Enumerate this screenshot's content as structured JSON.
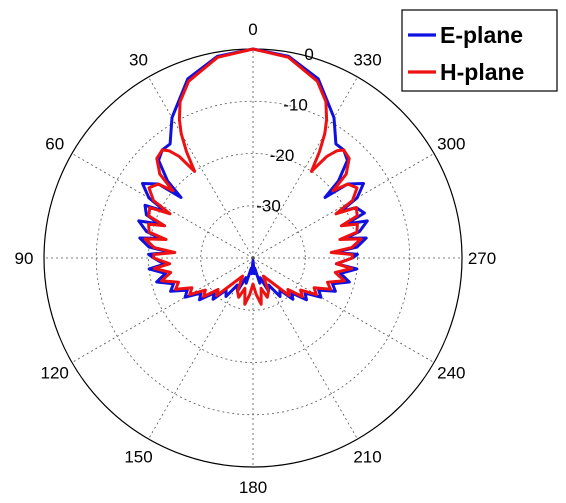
{
  "chart_data": {
    "type": "line",
    "subtype": "polar",
    "theta_direction": "counterclockwise",
    "theta_zero": "top",
    "angle_ticks": [
      "0",
      "30",
      "60",
      "90",
      "120",
      "150",
      "180",
      "210",
      "240",
      "270",
      "300",
      "330"
    ],
    "radial_ticks": [
      "0",
      "-10",
      "-20",
      "-30"
    ],
    "rlim": [
      -40,
      0
    ],
    "grid": true,
    "legend": "top-right",
    "series": [
      {
        "name": "E-plane",
        "color": "#1010e0",
        "theta": [
          0,
          10,
          20,
          30,
          32,
          36,
          40,
          44,
          48,
          50,
          52,
          56,
          60,
          62,
          64,
          68,
          70,
          72,
          76,
          78,
          80,
          84,
          86,
          88,
          90,
          94,
          96,
          100,
          104,
          108,
          112,
          116,
          120,
          124,
          128,
          132,
          136,
          140,
          145,
          150,
          155,
          160,
          165,
          170,
          175,
          180,
          185,
          190,
          195,
          200,
          205,
          210,
          215,
          220,
          224,
          228,
          232,
          236,
          240,
          244,
          248,
          252,
          256,
          260,
          264,
          266,
          270,
          272,
          274,
          276,
          280,
          282,
          284,
          288,
          290,
          292,
          296,
          298,
          300,
          304,
          308,
          310,
          312,
          316,
          320,
          324,
          328,
          330,
          340,
          350,
          360
        ],
        "r": [
          0,
          -0.8,
          -3.5,
          -9,
          -10.5,
          -13,
          -13,
          -14,
          -18,
          -22,
          -17,
          -14.5,
          -17,
          -21,
          -17,
          -18,
          -21,
          -17,
          -19,
          -22,
          -18,
          -20,
          -24,
          -20,
          -21,
          -23,
          -20,
          -23,
          -21,
          -24,
          -23,
          -26,
          -25,
          -28,
          -27,
          -30,
          -29,
          -32,
          -31,
          -34,
          -33,
          -36,
          -35,
          -38,
          -37,
          -39.5,
          -37,
          -38,
          -35,
          -36,
          -33,
          -34,
          -31,
          -32,
          -29,
          -30,
          -27,
          -28,
          -25,
          -26,
          -23,
          -24,
          -21,
          -23,
          -20,
          -24,
          -21,
          -20,
          -24,
          -20,
          -18,
          -22,
          -19,
          -17,
          -21,
          -17,
          -18,
          -21,
          -17,
          -14.5,
          -17,
          -22,
          -18,
          -14,
          -13,
          -13,
          -10.5,
          -9,
          -3.5,
          -0.8,
          0
        ]
      },
      {
        "name": "H-plane",
        "color": "#ee1111",
        "theta": [
          0,
          10,
          20,
          25,
          28,
          30,
          32,
          34,
          36,
          38,
          40,
          44,
          48,
          50,
          52,
          56,
          60,
          62,
          64,
          68,
          70,
          72,
          76,
          78,
          80,
          84,
          86,
          88,
          90,
          94,
          96,
          100,
          104,
          108,
          112,
          116,
          120,
          124,
          128,
          132,
          136,
          140,
          150,
          155,
          160,
          165,
          170,
          175,
          180,
          185,
          190,
          195,
          200,
          205,
          210,
          220,
          224,
          228,
          232,
          236,
          240,
          244,
          248,
          252,
          256,
          260,
          264,
          266,
          270,
          272,
          274,
          276,
          280,
          282,
          284,
          288,
          290,
          292,
          296,
          298,
          300,
          304,
          308,
          310,
          312,
          316,
          320,
          322,
          324,
          326,
          328,
          330,
          332,
          335,
          340,
          350,
          360
        ],
        "r": [
          0,
          -1,
          -4,
          -7,
          -10,
          -12.5,
          -16,
          -20,
          -16,
          -14,
          -13,
          -13.5,
          -16,
          -20,
          -17,
          -16,
          -18,
          -22,
          -18,
          -18.5,
          -22,
          -19,
          -19.5,
          -23,
          -19,
          -21,
          -25,
          -21,
          -21,
          -24,
          -21,
          -24,
          -22,
          -25,
          -24,
          -27,
          -26,
          -29,
          -28,
          -31,
          -30,
          -33,
          -36,
          -33,
          -32,
          -34,
          -31,
          -33,
          -35,
          -33,
          -31,
          -34,
          -32,
          -33,
          -36,
          -33,
          -30,
          -31,
          -28,
          -29,
          -26,
          -27,
          -24,
          -25,
          -22,
          -24,
          -21,
          -24,
          -21,
          -21,
          -25,
          -21,
          -19,
          -23,
          -19.5,
          -19,
          -22,
          -18.5,
          -18,
          -22,
          -18,
          -16,
          -17,
          -20,
          -16,
          -13.5,
          -13,
          -14,
          -16,
          -20,
          -16,
          -12.5,
          -10,
          -7,
          -4,
          -1,
          0
        ]
      }
    ]
  }
}
